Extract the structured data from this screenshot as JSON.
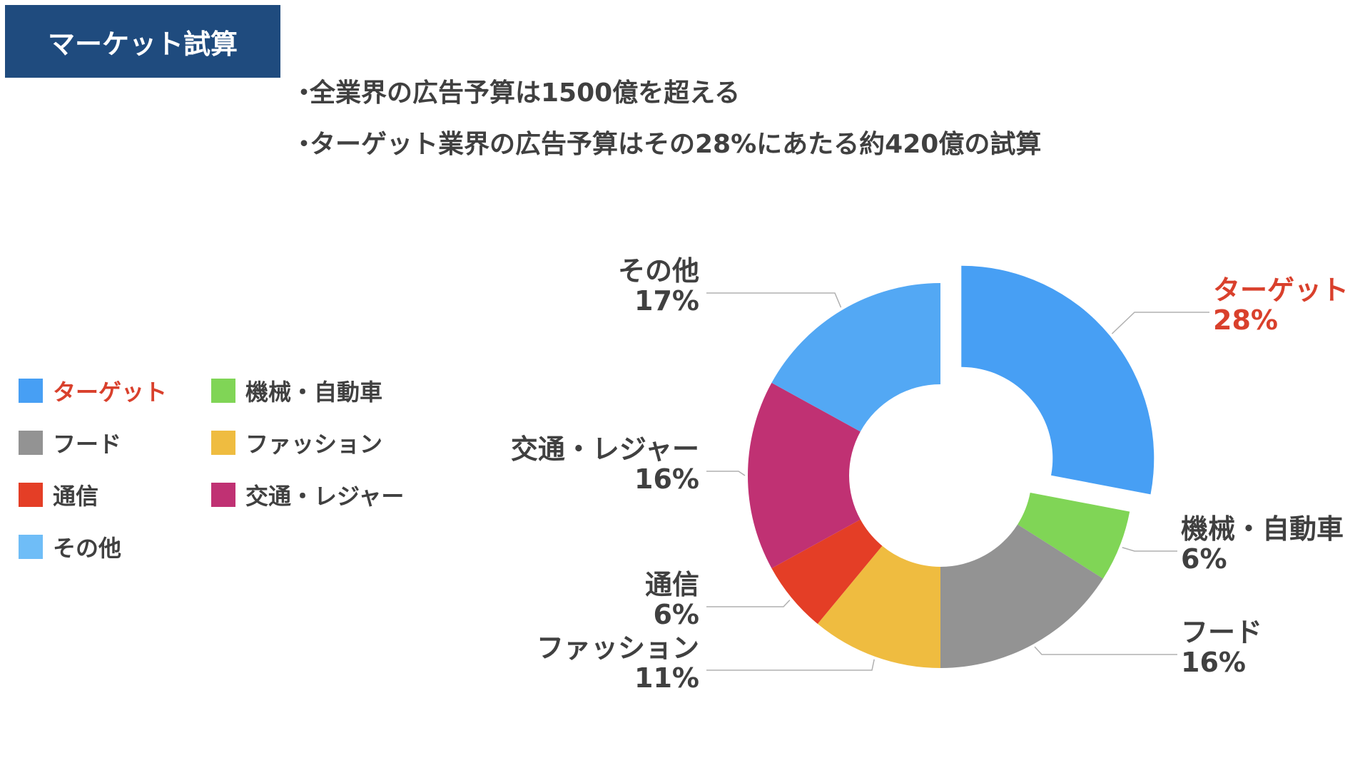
{
  "header": {
    "title": "マーケット試算"
  },
  "bullets": [
    "全業界の広告予算は1500億を超える",
    "ターゲット業界の広告予算はその28%にあたる約420億の試算"
  ],
  "bullet_marker": "・",
  "chart_data": {
    "type": "pie",
    "variant": "donut",
    "start_angle_deg": 0,
    "direction": "clockwise",
    "series": [
      {
        "name": "ターゲット",
        "value": 28,
        "label": "28%",
        "color": "#479ff4",
        "exploded": true,
        "highlight": true
      },
      {
        "name": "機械・自動車",
        "value": 6,
        "label": "6%",
        "color": "#80d556"
      },
      {
        "name": "フード",
        "value": 16,
        "label": "16%",
        "color": "#939393"
      },
      {
        "name": "ファッション",
        "value": 11,
        "label": "11%",
        "color": "#efbc40"
      },
      {
        "name": "通信",
        "value": 6,
        "label": "6%",
        "color": "#e43e26"
      },
      {
        "name": "交通・レジャー",
        "value": 16,
        "label": "16%",
        "color": "#c03173"
      },
      {
        "name": "その他",
        "value": 17,
        "label": "17%",
        "color": "#53a8f4"
      }
    ],
    "legend_placement": "left",
    "legend": [
      {
        "name": "ターゲット",
        "color": "#479ff4",
        "highlight": true
      },
      {
        "name": "機械・自動車",
        "color": "#80d556"
      },
      {
        "name": "フード",
        "color": "#939393"
      },
      {
        "name": "ファッション",
        "color": "#efbc40"
      },
      {
        "name": "通信",
        "color": "#e43e26"
      },
      {
        "name": "交通・レジャー",
        "color": "#c03173"
      },
      {
        "name": "その他",
        "color": "#6fbdf7"
      }
    ]
  },
  "colors": {
    "header_bg": "#1f4b7e",
    "header_text": "#ffffff",
    "body_text": "#404040",
    "highlight_text": "#d9402c",
    "leader_line": "#b0b0b0"
  }
}
